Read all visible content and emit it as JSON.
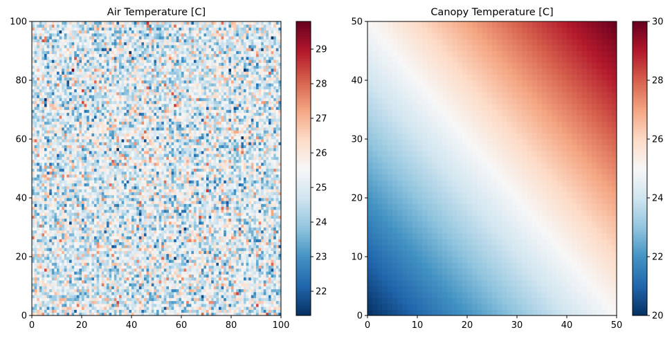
{
  "chart_data": [
    {
      "type": "heatmap",
      "title": "Air Temperature [C]",
      "xlabel": "",
      "ylabel": "",
      "grid": false,
      "xlim": [
        0,
        100
      ],
      "ylim": [
        0,
        100
      ],
      "grid_cells": [
        100,
        100
      ],
      "x_ticks": [
        0,
        20,
        40,
        60,
        80,
        100
      ],
      "y_ticks": [
        0,
        20,
        40,
        60,
        80,
        100
      ],
      "colormap": "RdBu_r",
      "colorbar": {
        "vmin": 21.3,
        "vmax": 29.8,
        "ticks": [
          22,
          23,
          24,
          25,
          26,
          27,
          28,
          29
        ]
      },
      "values": {
        "distribution": "random noise around a mean",
        "mean": 25,
        "stdev": 1.1,
        "min": 21.3,
        "max": 29.8,
        "seed": 7
      }
    },
    {
      "type": "heatmap",
      "title": "Canopy Temperature [C]",
      "xlabel": "",
      "ylabel": "",
      "grid": false,
      "xlim": [
        0,
        50
      ],
      "ylim": [
        0,
        50
      ],
      "grid_cells": [
        50,
        50
      ],
      "x_ticks": [
        0,
        10,
        20,
        30,
        40,
        50
      ],
      "y_ticks": [
        0,
        10,
        20,
        30,
        40,
        50
      ],
      "colormap": "RdBu_r",
      "colorbar": {
        "vmin": 20,
        "vmax": 30,
        "ticks": [
          20,
          22,
          24,
          26,
          28,
          30
        ]
      },
      "values": {
        "distribution": "linear diagonal gradient",
        "formula": "20 + 10 * (x + y) / 100",
        "at_origin": 20,
        "at_top_right": 30
      }
    }
  ],
  "colors": {
    "colormap_stops": [
      "#053061",
      "#2166ac",
      "#4393c3",
      "#92c5de",
      "#d1e5f0",
      "#f7f7f7",
      "#fddbc7",
      "#f4a582",
      "#d6604d",
      "#b2182b",
      "#67001f"
    ],
    "axis": "#000000",
    "background": "#ffffff"
  }
}
